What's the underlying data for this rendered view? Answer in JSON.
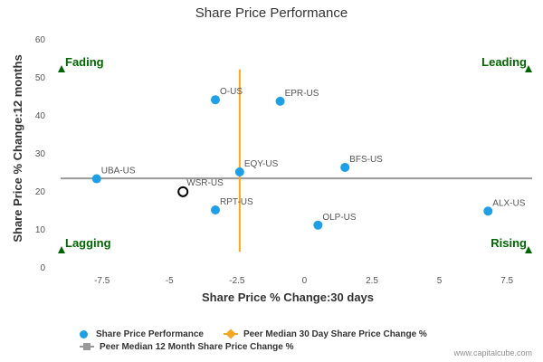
{
  "chart_data": {
    "type": "scatter",
    "title": "Share Price Performance",
    "xlabel": "Share Price % Change:30 days",
    "ylabel": "Share Price % Change:12 months",
    "xlim": [
      -9.2,
      8.5
    ],
    "ylim": [
      0,
      60
    ],
    "xticks": [
      -7.5,
      -5,
      -2.5,
      0,
      2.5,
      5,
      7.5
    ],
    "xtick_labels": [
      "-7.5",
      "-5",
      "-2.5",
      "0",
      "2.5",
      "5",
      "7.5"
    ],
    "yticks": [
      0,
      10,
      20,
      30,
      40,
      50,
      60
    ],
    "ytick_labels": [
      "0",
      "10",
      "20",
      "30",
      "40",
      "50",
      "60"
    ],
    "grid": false,
    "series": [
      {
        "name": "Share Price Performance",
        "color": "#1e9fe6",
        "points": [
          {
            "label": "O-US",
            "x": -3.3,
            "y": 44
          },
          {
            "label": "EPR-US",
            "x": -0.9,
            "y": 43.6
          },
          {
            "label": "BFS-US",
            "x": 1.5,
            "y": 26.2
          },
          {
            "label": "UBA-US",
            "x": -7.7,
            "y": 23.2
          },
          {
            "label": "EQY-US",
            "x": -2.4,
            "y": 25
          },
          {
            "label": "RPT-US",
            "x": -3.3,
            "y": 15
          },
          {
            "label": "OLP-US",
            "x": 0.5,
            "y": 11
          },
          {
            "label": "ALX-US",
            "x": 6.8,
            "y": 14.7
          }
        ]
      },
      {
        "name": "Peer Median 30 Day Share Price Change %",
        "color": "#f5a623",
        "x": -2.4,
        "y_range": [
          4,
          52
        ]
      },
      {
        "name": "Peer Median 12 Month Share Price Change %",
        "color": "#999999",
        "y": 23.3,
        "x_range": [
          -9.2,
          8.5
        ]
      }
    ],
    "highlight": {
      "label": "WSR-US",
      "x": -4.5,
      "y": 19.8
    },
    "quadrants": [
      {
        "label": "Fading",
        "position": "top-left",
        "color": "#006400"
      },
      {
        "label": "Leading",
        "position": "top-right",
        "color": "#006400"
      },
      {
        "label": "Lagging",
        "position": "bottom-left",
        "color": "#006400"
      },
      {
        "label": "Rising",
        "position": "bottom-right",
        "color": "#006400"
      }
    ],
    "legend_position": "bottom-left"
  },
  "credit": "www.capitalcube.com"
}
